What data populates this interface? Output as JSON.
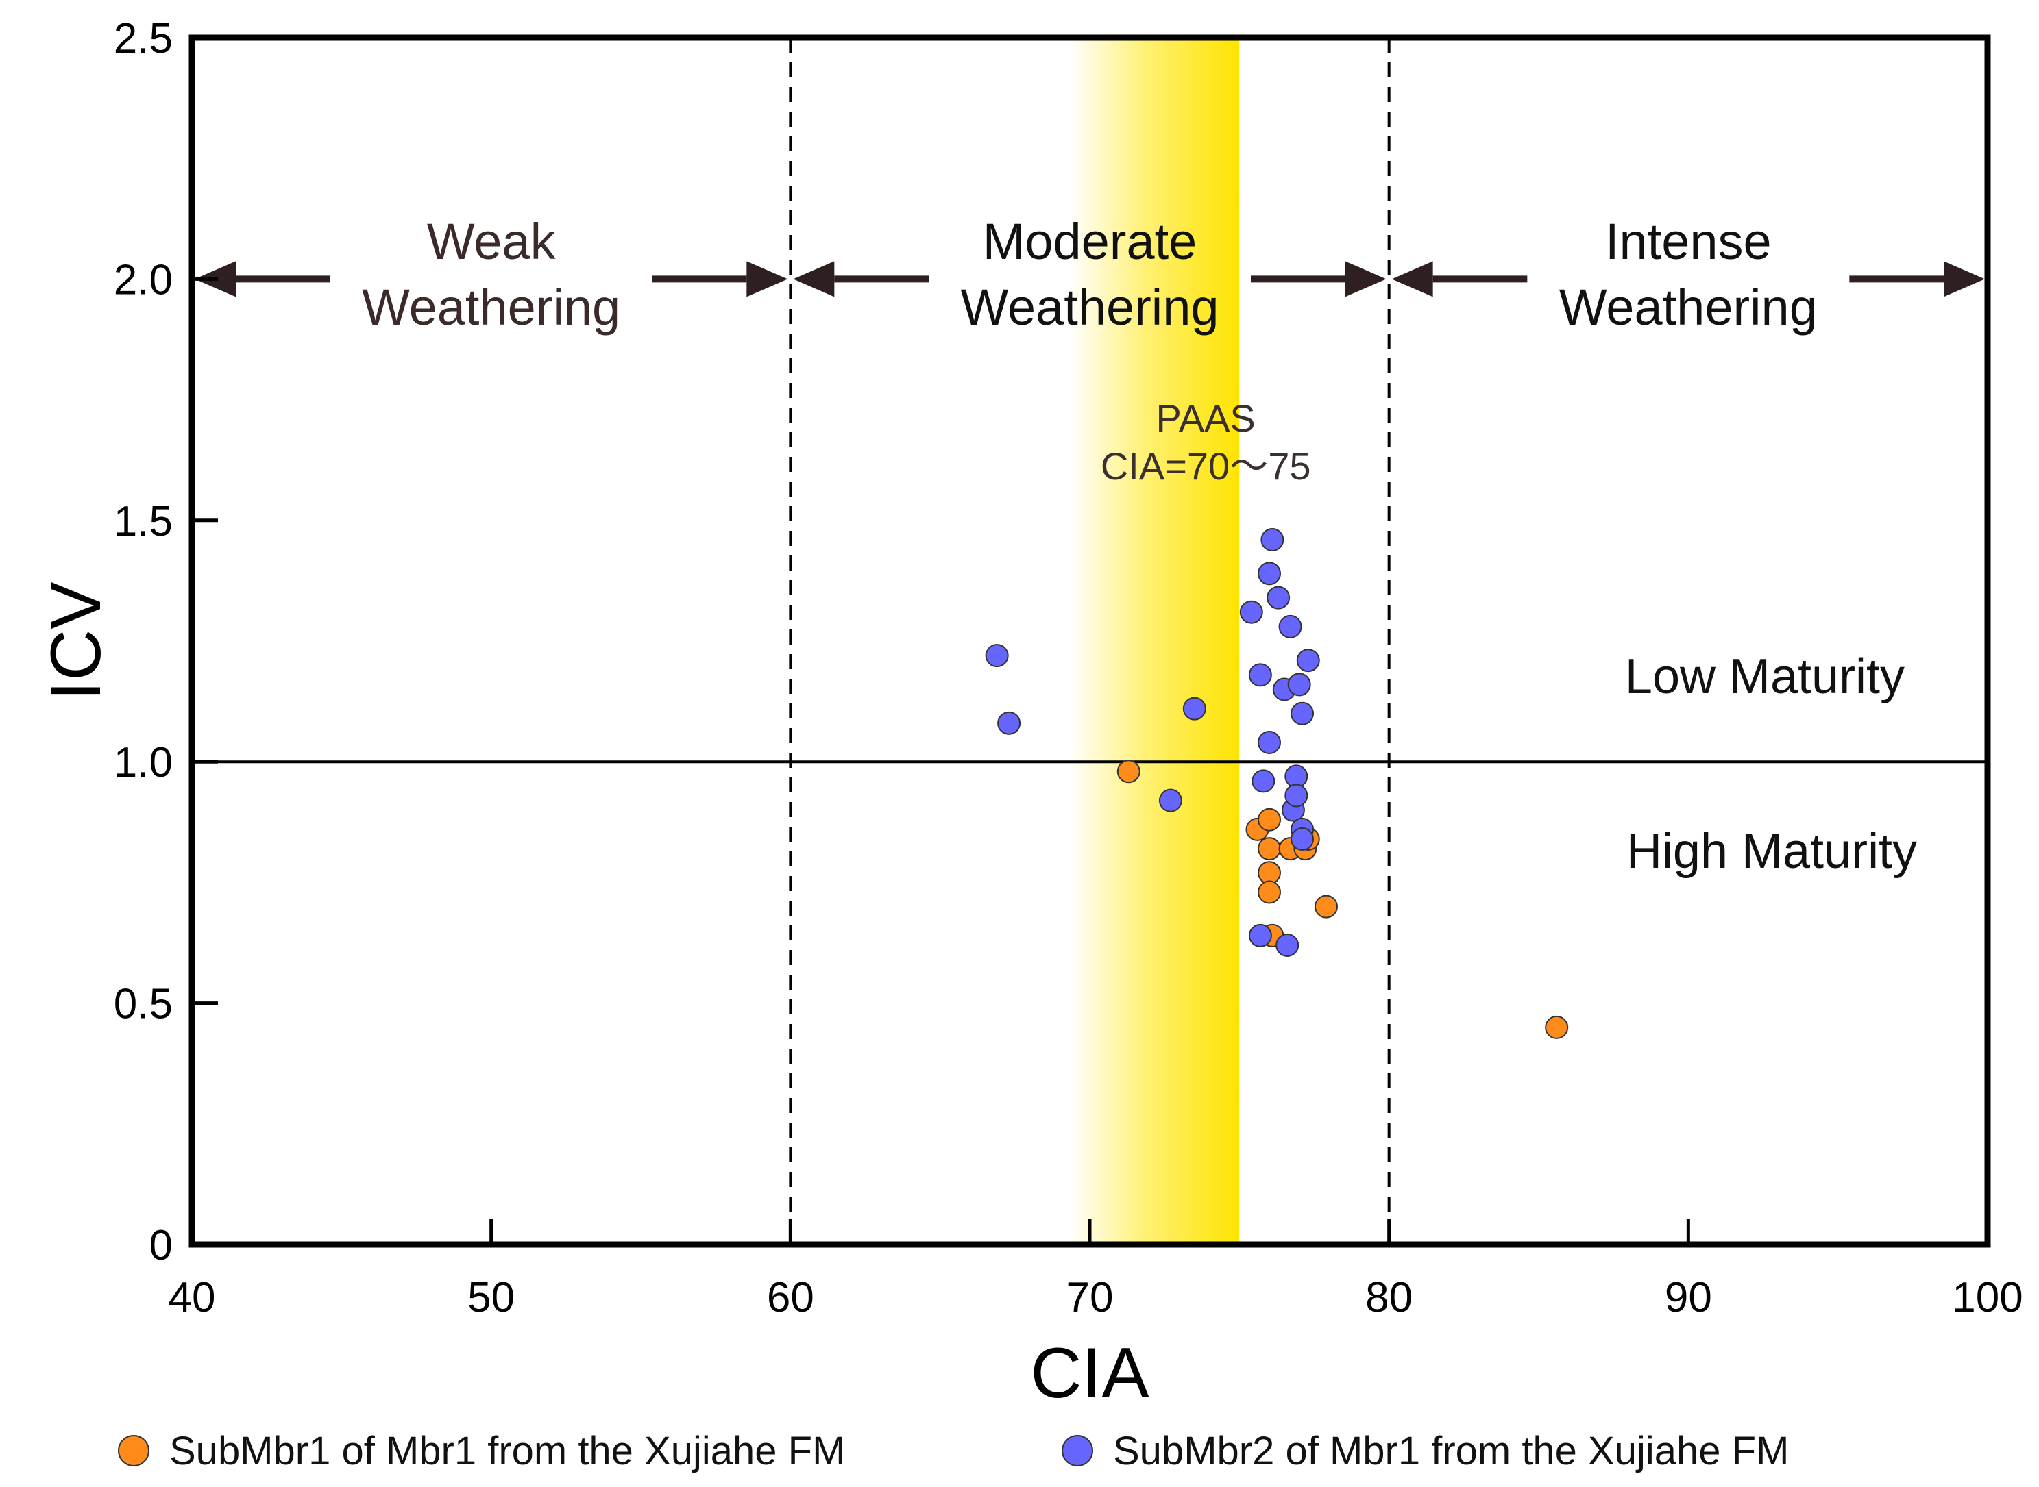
{
  "chart_data": {
    "type": "scatter",
    "title": "",
    "xlabel": "CIA",
    "ylabel": "ICV",
    "xlim": [
      40,
      100
    ],
    "ylim": [
      0,
      2.5
    ],
    "xticks": [
      40,
      50,
      60,
      70,
      80,
      90,
      100
    ],
    "yticks": [
      0,
      0.5,
      1.0,
      1.5,
      2.0,
      2.5
    ],
    "xtick_labels": [
      "40",
      "50",
      "60",
      "70",
      "80",
      "90",
      "100"
    ],
    "ytick_labels": [
      "0",
      "0.5",
      "1.0",
      "1.5",
      "2.0",
      "2.5"
    ],
    "grid": false,
    "legend_position": "bottom",
    "reference_lines": {
      "vertical_dashed": [
        60,
        80
      ],
      "horizontal_solid": [
        1.0
      ]
    },
    "paas_band": {
      "from": 70,
      "to": 75,
      "label_line1": "PAAS",
      "label_line2": "CIA=70～75",
      "color": "#ffe400"
    },
    "zones": [
      {
        "label_line1": "Weak",
        "label_line2": "Weathering",
        "from": 40,
        "to": 60
      },
      {
        "label_line1": "Moderate",
        "label_line2": "Weathering",
        "from": 60,
        "to": 80
      },
      {
        "label_line1": "Intense",
        "label_line2": "Weathering",
        "from": 80,
        "to": 100
      }
    ],
    "zone_arrow_y": 2.0,
    "annotations": {
      "low": "Low Maturity",
      "high": "High Maturity"
    },
    "series": [
      {
        "name": "SubMbr1 of Mbr1 from the Xujiahe FM",
        "color": "#ff8c1a",
        "points": [
          [
            71.3,
            0.98
          ],
          [
            75.6,
            0.86
          ],
          [
            76.0,
            0.88
          ],
          [
            76.0,
            0.82
          ],
          [
            76.0,
            0.77
          ],
          [
            76.0,
            0.73
          ],
          [
            76.1,
            0.64
          ],
          [
            76.7,
            0.82
          ],
          [
            77.2,
            0.82
          ],
          [
            77.3,
            0.84
          ],
          [
            77.9,
            0.7
          ],
          [
            85.6,
            0.45
          ]
        ]
      },
      {
        "name": "SubMbr2 of Mbr1 from the Xujiahe FM",
        "color": "#6666ff",
        "points": [
          [
            66.9,
            1.22
          ],
          [
            67.3,
            1.08
          ],
          [
            72.7,
            0.92
          ],
          [
            73.5,
            1.11
          ],
          [
            75.4,
            1.31
          ],
          [
            75.7,
            1.18
          ],
          [
            75.8,
            0.96
          ],
          [
            75.7,
            0.64
          ],
          [
            76.0,
            1.04
          ],
          [
            76.0,
            1.39
          ],
          [
            76.1,
            1.46
          ],
          [
            76.3,
            1.34
          ],
          [
            76.5,
            1.15
          ],
          [
            76.6,
            0.62
          ],
          [
            76.7,
            1.28
          ],
          [
            76.8,
            0.9
          ],
          [
            76.9,
            0.97
          ],
          [
            76.9,
            0.93
          ],
          [
            77.0,
            1.16
          ],
          [
            77.1,
            1.1
          ],
          [
            77.1,
            0.86
          ],
          [
            77.1,
            0.84
          ],
          [
            77.3,
            1.21
          ]
        ]
      }
    ]
  }
}
